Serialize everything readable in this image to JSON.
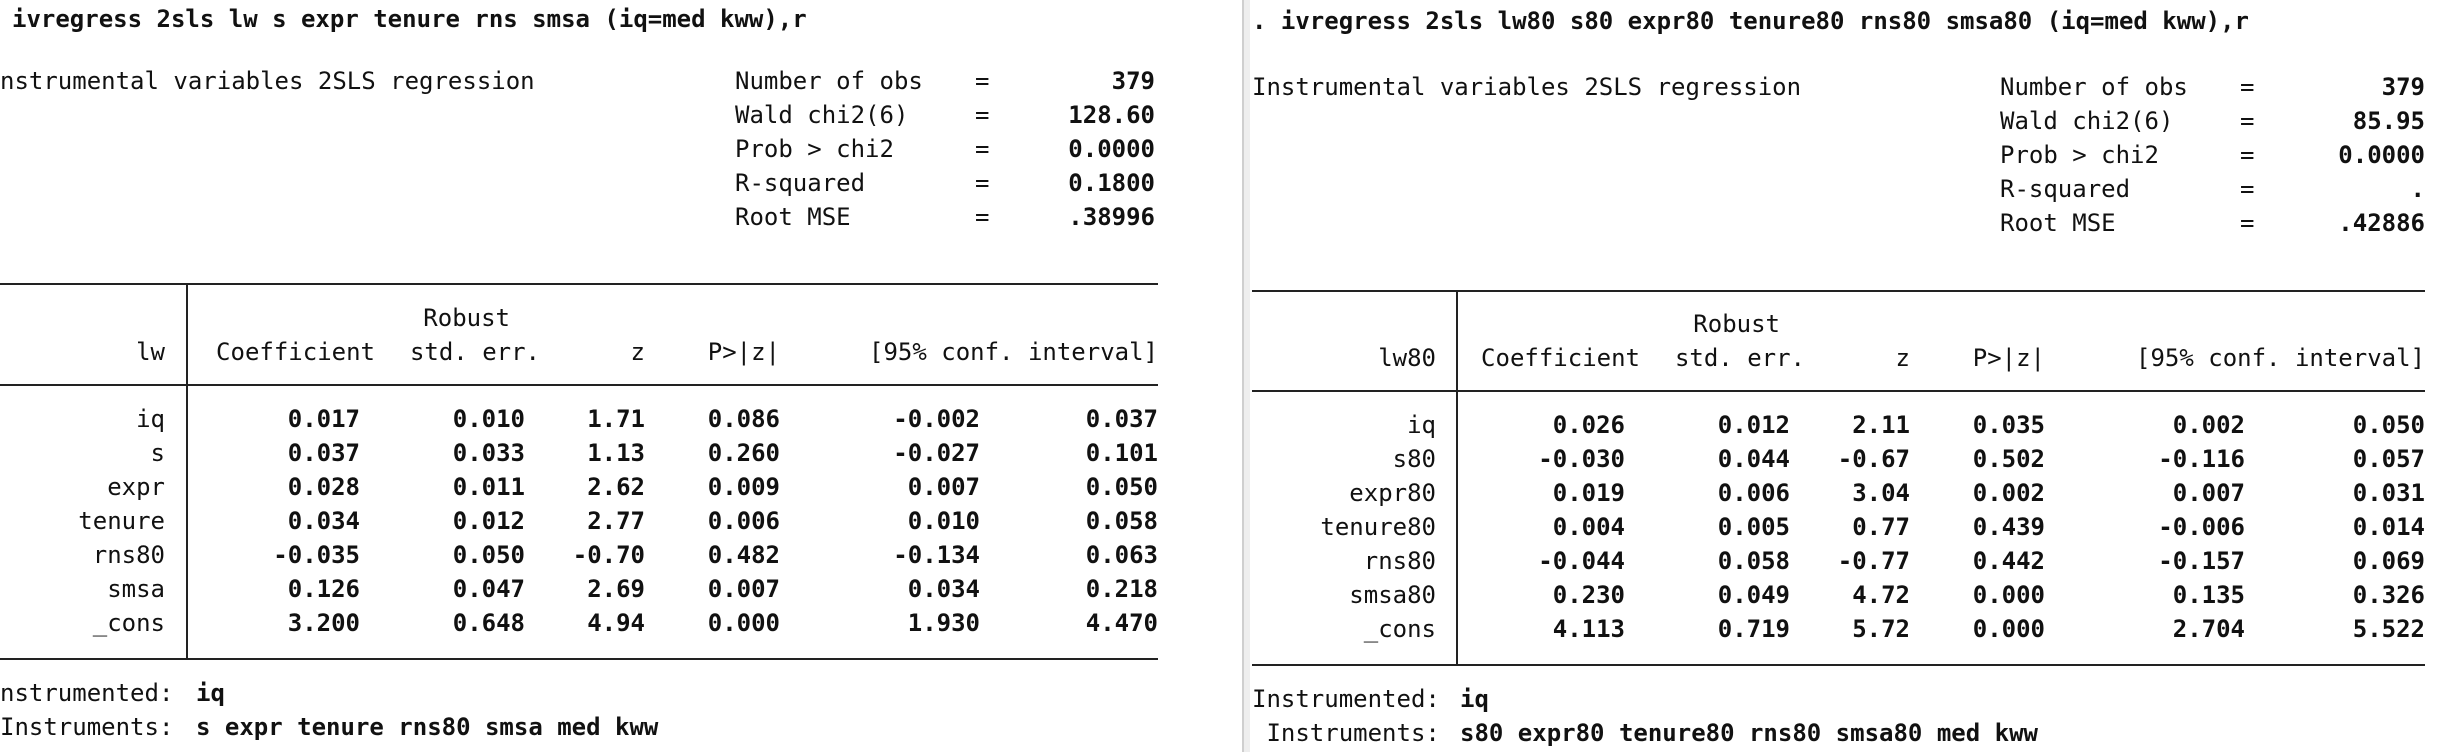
{
  "left": {
    "command": "ivregress 2sls lw s expr tenure rns smsa (iq=med kww),r",
    "title": "nstrumental variables 2SLS regression",
    "stats": [
      {
        "label": "Number of obs",
        "eq": "=",
        "value": "379"
      },
      {
        "label": "Wald chi2(6)",
        "eq": "=",
        "value": "128.60"
      },
      {
        "label": "Prob > chi2",
        "eq": "=",
        "value": "0.0000"
      },
      {
        "label": "R-squared",
        "eq": "=",
        "value": "0.1800"
      },
      {
        "label": "Root MSE",
        "eq": "=",
        "value": ".38996"
      }
    ],
    "header": {
      "depvar": "lw",
      "robust": "Robust",
      "coef": "Coefficient",
      "se": "std. err.",
      "z": "z",
      "p": "P>|z|",
      "ci": "[95% conf. interval]"
    },
    "rows": [
      {
        "var": "iq",
        "coef": "0.017",
        "se": "0.010",
        "z": "1.71",
        "p": "0.086",
        "lo": "-0.002",
        "hi": "0.037"
      },
      {
        "var": "s",
        "coef": "0.037",
        "se": "0.033",
        "z": "1.13",
        "p": "0.260",
        "lo": "-0.027",
        "hi": "0.101"
      },
      {
        "var": "expr",
        "coef": "0.028",
        "se": "0.011",
        "z": "2.62",
        "p": "0.009",
        "lo": "0.007",
        "hi": "0.050"
      },
      {
        "var": "tenure",
        "coef": "0.034",
        "se": "0.012",
        "z": "2.77",
        "p": "0.006",
        "lo": "0.010",
        "hi": "0.058"
      },
      {
        "var": "rns80",
        "coef": "-0.035",
        "se": "0.050",
        "z": "-0.70",
        "p": "0.482",
        "lo": "-0.134",
        "hi": "0.063"
      },
      {
        "var": "smsa",
        "coef": "0.126",
        "se": "0.047",
        "z": "2.69",
        "p": "0.007",
        "lo": "0.034",
        "hi": "0.218"
      },
      {
        "var": "_cons",
        "coef": "3.200",
        "se": "0.648",
        "z": "4.94",
        "p": "0.000",
        "lo": "1.930",
        "hi": "4.470"
      }
    ],
    "instrumented_label": "nstrumented:",
    "instrumented_value": "iq",
    "instruments_label": "Instruments:",
    "instruments_value": "s expr tenure rns80 smsa med kww"
  },
  "right": {
    "command": ". ivregress 2sls lw80 s80 expr80 tenure80 rns80 smsa80 (iq=med kww),r",
    "title": "Instrumental variables 2SLS regression",
    "stats": [
      {
        "label": "Number of obs",
        "eq": "=",
        "value": "379"
      },
      {
        "label": "Wald chi2(6)",
        "eq": "=",
        "value": "85.95"
      },
      {
        "label": "Prob > chi2",
        "eq": "=",
        "value": "0.0000"
      },
      {
        "label": "R-squared",
        "eq": "=",
        "value": "."
      },
      {
        "label": "Root MSE",
        "eq": "=",
        "value": ".42886"
      }
    ],
    "header": {
      "depvar": "lw80",
      "robust": "Robust",
      "coef": "Coefficient",
      "se": "std. err.",
      "z": "z",
      "p": "P>|z|",
      "ci": "[95% conf. interval]"
    },
    "rows": [
      {
        "var": "iq",
        "coef": "0.026",
        "se": "0.012",
        "z": "2.11",
        "p": "0.035",
        "lo": "0.002",
        "hi": "0.050"
      },
      {
        "var": "s80",
        "coef": "-0.030",
        "se": "0.044",
        "z": "-0.67",
        "p": "0.502",
        "lo": "-0.116",
        "hi": "0.057"
      },
      {
        "var": "expr80",
        "coef": "0.019",
        "se": "0.006",
        "z": "3.04",
        "p": "0.002",
        "lo": "0.007",
        "hi": "0.031"
      },
      {
        "var": "tenure80",
        "coef": "0.004",
        "se": "0.005",
        "z": "0.77",
        "p": "0.439",
        "lo": "-0.006",
        "hi": "0.014"
      },
      {
        "var": "rns80",
        "coef": "-0.044",
        "se": "0.058",
        "z": "-0.77",
        "p": "0.442",
        "lo": "-0.157",
        "hi": "0.069"
      },
      {
        "var": "smsa80",
        "coef": "0.230",
        "se": "0.049",
        "z": "4.72",
        "p": "0.000",
        "lo": "0.135",
        "hi": "0.326"
      },
      {
        "var": "_cons",
        "coef": "4.113",
        "se": "0.719",
        "z": "5.72",
        "p": "0.000",
        "lo": "2.704",
        "hi": "5.522"
      }
    ],
    "instrumented_label": "Instrumented:",
    "instrumented_value": "iq",
    "instruments_label": " Instruments:",
    "instruments_value": "s80 expr80 tenure80 rns80 smsa80 med kww"
  }
}
